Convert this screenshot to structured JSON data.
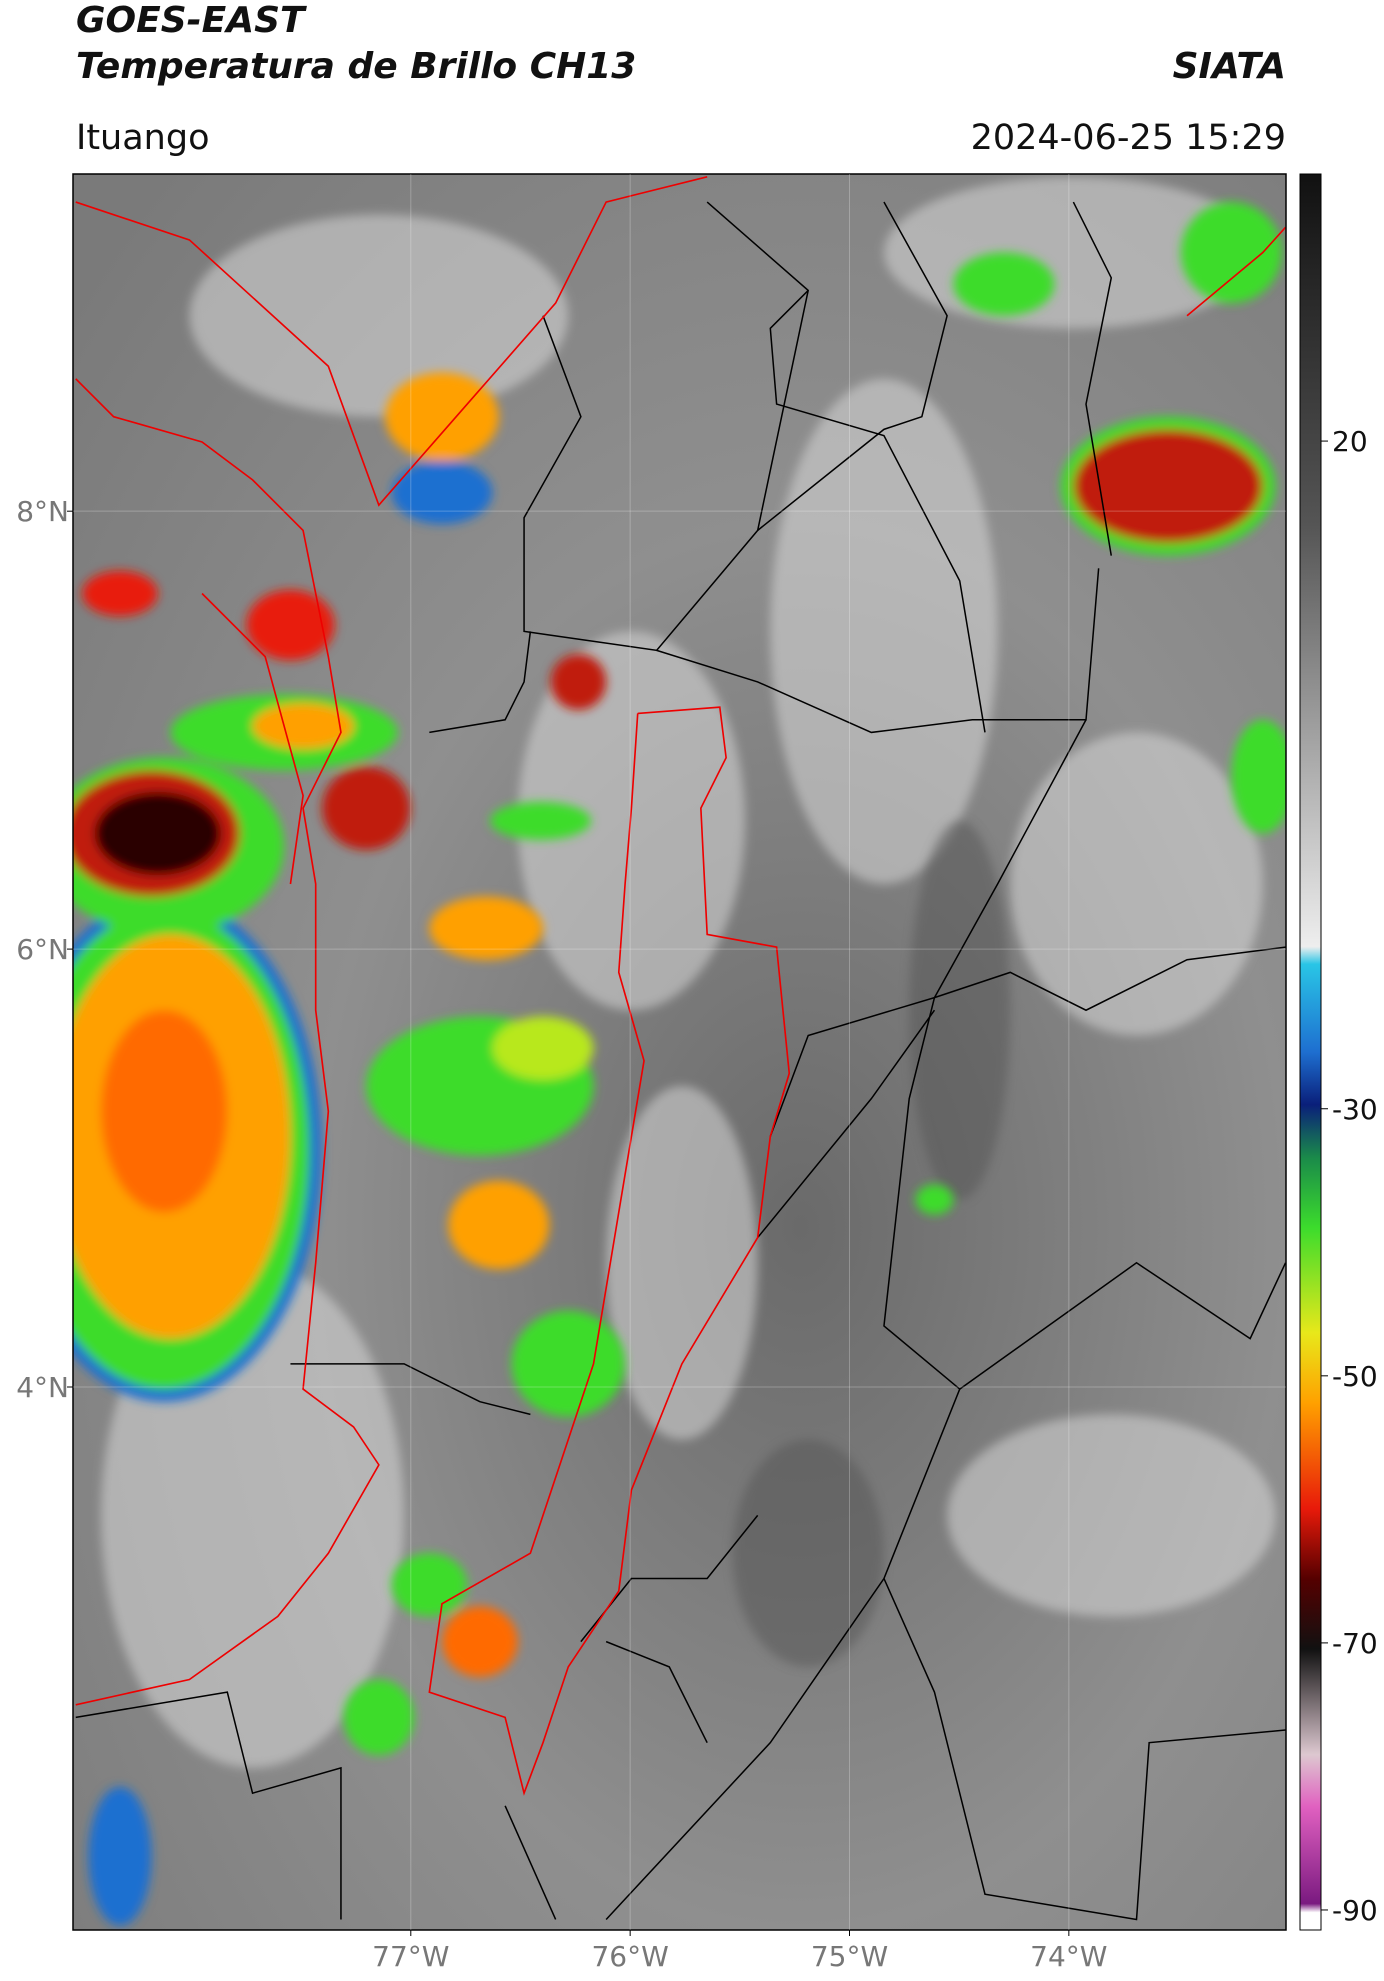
{
  "header": {
    "title": "GOES-EAST",
    "subtitle": "Temperatura de Brillo CH13",
    "source": "SIATA",
    "region": "Ituango",
    "datetime": "2024-06-25 15:29"
  },
  "map": {
    "xlim": [
      -78.54,
      -73.01
    ],
    "ylim": [
      1.52,
      9.54
    ],
    "xticks": [
      {
        "value": -77,
        "label": "77°W"
      },
      {
        "value": -76,
        "label": "76°W"
      },
      {
        "value": -75,
        "label": "75°W"
      },
      {
        "value": -74,
        "label": "74°W"
      }
    ],
    "yticks": [
      {
        "value": 8,
        "label": "8°N"
      },
      {
        "value": 6,
        "label": "6°N"
      },
      {
        "value": 4,
        "label": "4°N"
      }
    ],
    "grid": true,
    "colorbar": {
      "clim": [
        -91.5,
        40
      ],
      "ticks": [
        20,
        -30,
        -50,
        -70,
        -90
      ]
    }
  }
}
